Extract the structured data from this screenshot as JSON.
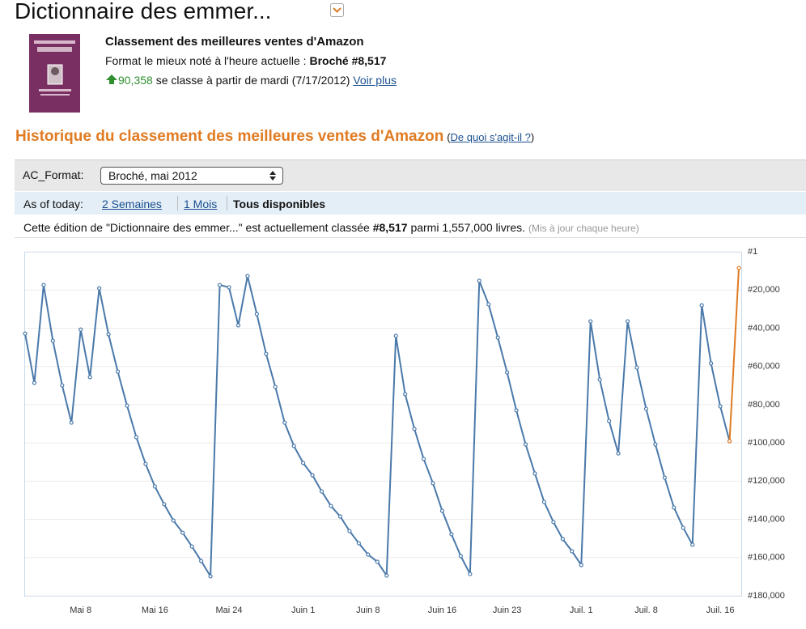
{
  "header": {
    "title": "Dictionnaire des emmer..."
  },
  "summary": {
    "heading": "Classement des meilleures ventes d'Amazon",
    "format_text": "Format le mieux noté à l'heure actuelle :",
    "format_rank": "Broché #8,517",
    "change": "90,358",
    "change_text": "se classe à partir de mardi (7/17/2012)",
    "more_link": "Voir plus"
  },
  "history": {
    "heading": "Historique du classement des meilleures ventes d'Amazon",
    "help_parens": [
      "(",
      ")"
    ],
    "help_link": "De quoi s'agit-il ?",
    "format_label": "AC_Format:",
    "format_select": "Broché, mai 2012",
    "range_label": "As of today:",
    "ranges": [
      "2 Semaines",
      "1 Mois",
      "Tous disponibles"
    ],
    "status_before": "Cette édition de \"Dictionnaire des emmer...\" est actuellement classée",
    "status_rank": "#8,517",
    "status_after": "parmi 1,557,000 livres.",
    "status_note": "(Mis à jour chaque heure)"
  },
  "chart_data": {
    "type": "line",
    "categories": [
      null,
      null,
      null,
      null,
      null,
      null,
      "Mai 8",
      null,
      null,
      null,
      null,
      null,
      null,
      null,
      "Mai 16",
      null,
      null,
      null,
      null,
      null,
      null,
      null,
      "Mai 24",
      null,
      null,
      null,
      null,
      null,
      null,
      null,
      "Juin 1",
      null,
      null,
      null,
      null,
      null,
      null,
      "Juin 8",
      null,
      null,
      null,
      null,
      null,
      null,
      null,
      "Juin 16",
      null,
      null,
      null,
      null,
      null,
      null,
      "Juin 23",
      null,
      null,
      null,
      null,
      null,
      null,
      null,
      "Juil. 1",
      null,
      null,
      null,
      null,
      null,
      null,
      "Juil. 8",
      null,
      null,
      null,
      null,
      null,
      null,
      null,
      "Juil. 16",
      null,
      null
    ],
    "series": [
      {
        "color": "#4a79aa",
        "values": [
          42800,
          68600,
          17400,
          46600,
          69900,
          89400,
          40700,
          65600,
          19100,
          43200,
          62700,
          80500,
          97000,
          111000,
          122800,
          132100,
          140600,
          147000,
          154200,
          161800,
          169800,
          17400,
          18600,
          38500,
          12700,
          32600,
          53400,
          70700,
          89400,
          101600,
          110500,
          116900,
          125400,
          133000,
          138500,
          146100,
          152500,
          158400,
          162200,
          169400,
          44000,
          74500,
          92700,
          108400,
          121100,
          135500,
          147800,
          159200,
          168600,
          15200,
          27500,
          44900,
          63100,
          83000,
          100800,
          116000,
          130900,
          141400,
          150300,
          156700,
          163900,
          36400,
          66900,
          88500,
          105500,
          36400,
          60600,
          82200,
          100800,
          118200,
          133800,
          144400,
          153300,
          28000,
          58400,
          80900,
          99100,
          null
        ]
      },
      {
        "color": "#e07b22",
        "values": [
          null,
          null,
          null,
          null,
          null,
          null,
          null,
          null,
          null,
          null,
          null,
          null,
          null,
          null,
          null,
          null,
          null,
          null,
          null,
          null,
          null,
          null,
          null,
          null,
          null,
          null,
          null,
          null,
          null,
          null,
          null,
          null,
          null,
          null,
          null,
          null,
          null,
          null,
          null,
          null,
          null,
          null,
          null,
          null,
          null,
          null,
          null,
          null,
          null,
          null,
          null,
          null,
          null,
          null,
          null,
          null,
          null,
          null,
          null,
          null,
          null,
          null,
          null,
          null,
          null,
          null,
          null,
          null,
          null,
          null,
          null,
          null,
          null,
          null,
          null,
          null,
          99100,
          8517
        ]
      }
    ],
    "ylim": [
      180000,
      1
    ],
    "yticks": [
      {
        "value": 1,
        "label": "#1"
      },
      {
        "value": 20000,
        "label": "#20,000"
      },
      {
        "value": 40000,
        "label": "#40,000"
      },
      {
        "value": 60000,
        "label": "#60,000"
      },
      {
        "value": 80000,
        "label": "#80,000"
      },
      {
        "value": 100000,
        "label": "#100,000"
      },
      {
        "value": 120000,
        "label": "#120,000"
      },
      {
        "value": 140000,
        "label": "#140,000"
      },
      {
        "value": 160000,
        "label": "#160,000"
      },
      {
        "value": 180000,
        "label": "#180,000"
      }
    ],
    "grid": true
  }
}
